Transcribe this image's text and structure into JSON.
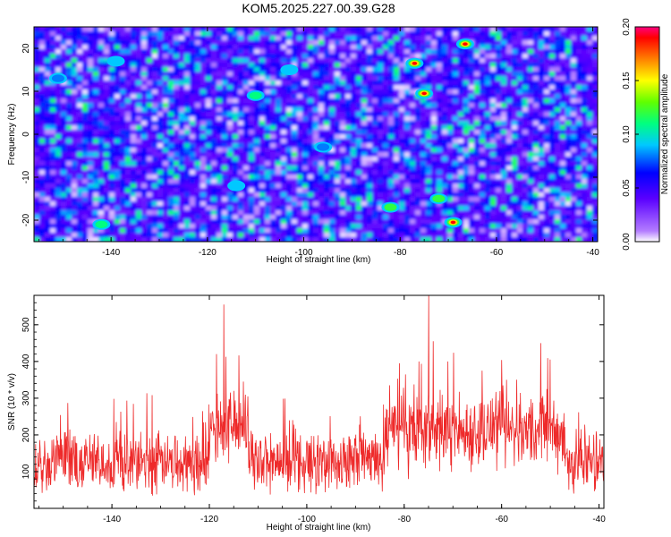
{
  "figure_title": "KOM5.2025.227.00.39.G28",
  "chart_data": [
    {
      "type": "heatmap",
      "title": "KOM5.2025.227.00.39.G28",
      "xlabel": "Height of straight line (km)",
      "ylabel": "Frequency (Hz)",
      "xlim": [
        -156,
        -39
      ],
      "ylim": [
        -25,
        25
      ],
      "x_ticks": [
        "-140",
        "-120",
        "-100",
        "-80",
        "-60",
        "-40"
      ],
      "y_ticks": [
        "20",
        "10",
        "0",
        "-10",
        "-20"
      ],
      "colorbar": {
        "label": "Normalized spectral amplitude",
        "range": [
          0.0,
          0.2
        ],
        "ticks": [
          "0.00",
          "0.05",
          "0.10",
          "0.15",
          "0.20"
        ]
      },
      "hotspots": [
        {
          "x": -77,
          "y": 16.5,
          "amplitude": 0.19
        },
        {
          "x": -75,
          "y": 9.5,
          "amplitude": 0.19
        },
        {
          "x": -66.5,
          "y": 21,
          "amplitude": 0.19
        },
        {
          "x": -69,
          "y": -20.5,
          "amplitude": 0.19
        },
        {
          "x": -72,
          "y": -15,
          "amplitude": 0.12
        },
        {
          "x": -82,
          "y": -17,
          "amplitude": 0.12
        },
        {
          "x": -110,
          "y": 9,
          "amplitude": 0.11
        },
        {
          "x": -142,
          "y": -21,
          "amplitude": 0.11
        },
        {
          "x": -114,
          "y": -12,
          "amplitude": 0.09
        },
        {
          "x": -103,
          "y": 15,
          "amplitude": 0.09
        },
        {
          "x": -139,
          "y": 17,
          "amplitude": 0.09
        },
        {
          "x": -96,
          "y": -3,
          "amplitude": 0.08
        },
        {
          "x": -151,
          "y": 13,
          "amplitude": 0.08
        }
      ]
    },
    {
      "type": "line",
      "xlabel": "Height of straight line (km)",
      "ylabel": "SNR (10 * v/v)",
      "xlim": [
        -156,
        -39
      ],
      "ylim": [
        0,
        580
      ],
      "x_ticks": [
        "-140",
        "-120",
        "-100",
        "-80",
        "-60",
        "-40"
      ],
      "y_ticks": [
        "500",
        "400",
        "300",
        "200",
        "100"
      ],
      "baseline_mean": 125,
      "peaks": [
        {
          "x": -117,
          "y": 555
        },
        {
          "x": -118.5,
          "y": 420
        },
        {
          "x": -75,
          "y": 580
        },
        {
          "x": -74,
          "y": 455
        },
        {
          "x": -77,
          "y": 400
        },
        {
          "x": -52,
          "y": 450
        },
        {
          "x": -50,
          "y": 405
        },
        {
          "x": -71,
          "y": 400
        },
        {
          "x": -81,
          "y": 395
        },
        {
          "x": -64,
          "y": 375
        },
        {
          "x": -59,
          "y": 350
        },
        {
          "x": -83,
          "y": 335
        },
        {
          "x": -113,
          "y": 345
        }
      ]
    }
  ]
}
